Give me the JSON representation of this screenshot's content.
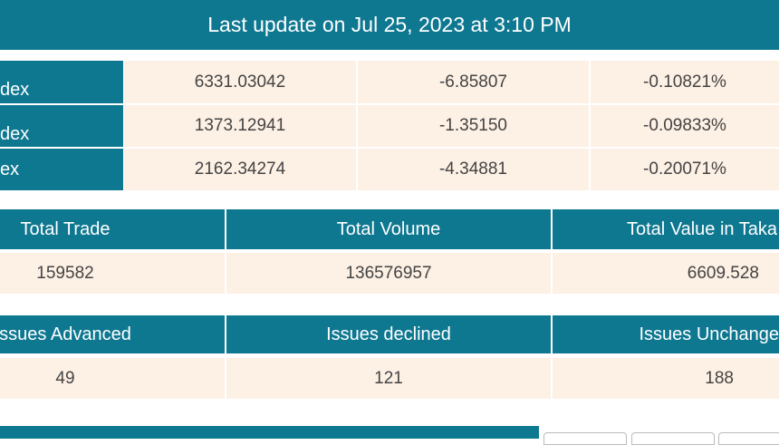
{
  "header": {
    "title": "Last update on Jul 25, 2023 at 3:10 PM"
  },
  "indices": {
    "rows": [
      [
        "dex",
        "6331.03042",
        "-6.85807",
        "-0.10821%"
      ],
      [
        "dex",
        "1373.12941",
        "-1.35150",
        "-0.09833%"
      ],
      [
        "ex",
        "2162.34274",
        "-4.34881",
        "-0.20071%"
      ]
    ]
  },
  "market_summary": {
    "headers": [
      "Total Trade",
      "Total Volume",
      "Total Value in Taka"
    ],
    "values": [
      "159582",
      "136576957",
      "6609.528"
    ]
  },
  "issues": {
    "headers": [
      "ssues Advanced",
      "Issues declined",
      "Issues Unchange"
    ],
    "values": [
      "49",
      "121",
      "188"
    ]
  }
}
